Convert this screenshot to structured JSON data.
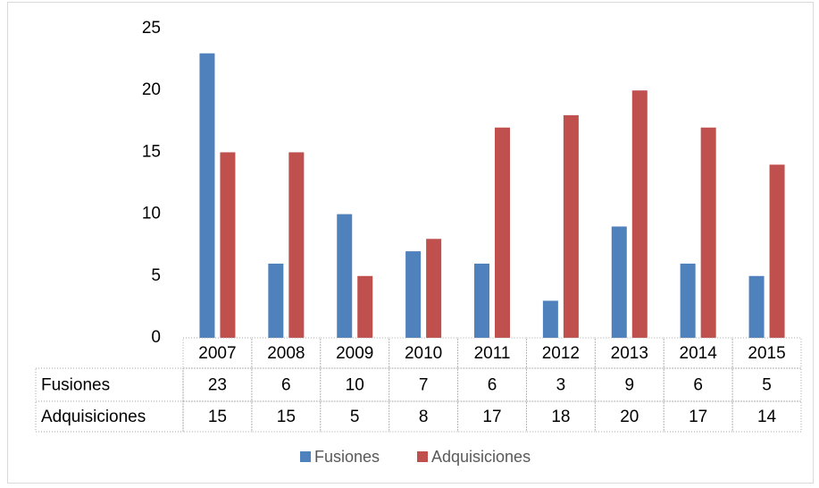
{
  "chart_data": {
    "type": "bar",
    "categories": [
      "2007",
      "2008",
      "2009",
      "2010",
      "2011",
      "2012",
      "2013",
      "2014",
      "2015"
    ],
    "series": [
      {
        "name": "Fusiones",
        "color": "#4f81bd",
        "values": [
          23,
          6,
          10,
          7,
          6,
          3,
          9,
          6,
          5
        ]
      },
      {
        "name": "Adquisiciones",
        "color": "#c0504d",
        "values": [
          15,
          15,
          5,
          8,
          17,
          18,
          20,
          17,
          14
        ]
      }
    ],
    "ylim": [
      0,
      25
    ],
    "yticks": [
      0,
      5,
      10,
      15,
      20,
      25
    ],
    "grid": false,
    "legend": "bottom",
    "data_table": true
  }
}
